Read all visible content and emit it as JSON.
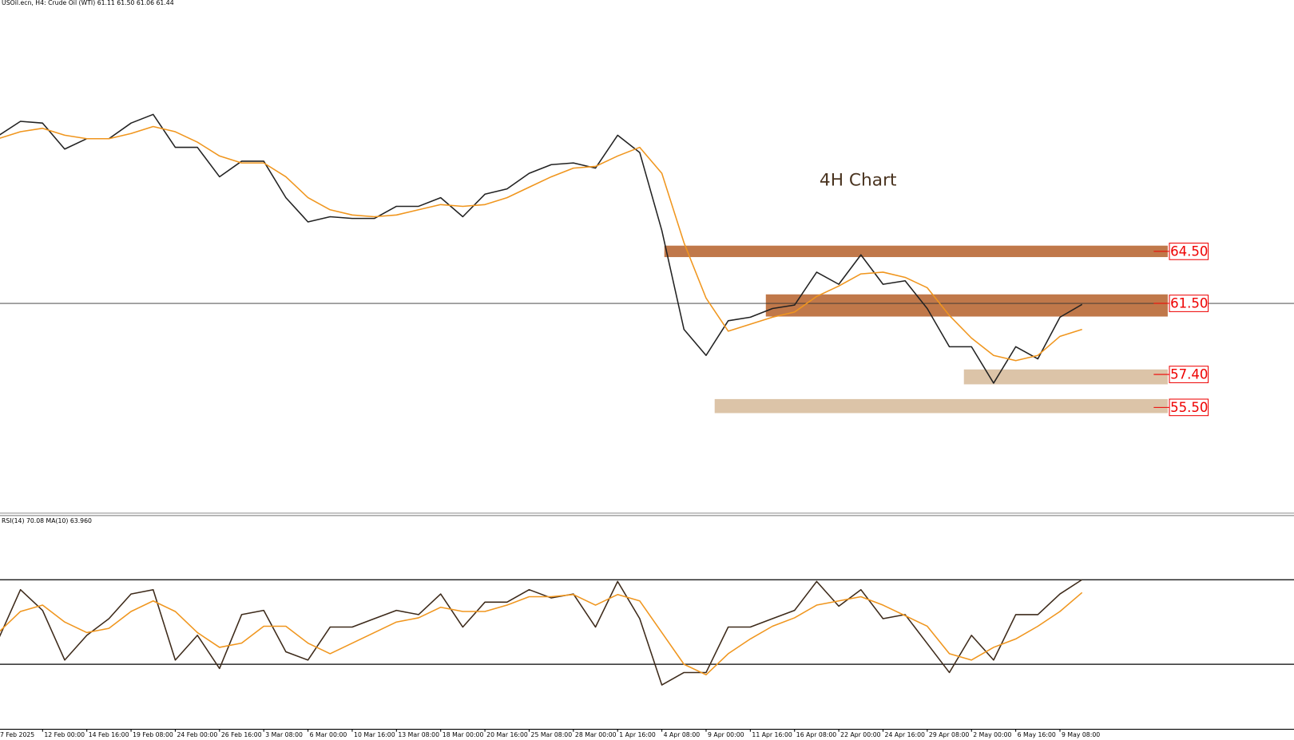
{
  "chart_data": [
    {
      "type": "line",
      "title": "USOil.ecn, H4:  Crude Oil (WTI)  61.11 61.50 61.06 61.44",
      "annotation": "4H Chart",
      "categories": [
        "7 Feb 2025",
        null,
        "12 Feb 00:00",
        null,
        "14 Feb 16:00",
        null,
        "19 Feb 08:00",
        null,
        "24 Feb 00:00",
        null,
        "26 Feb 16:00",
        null,
        "3 Mar 08:00",
        null,
        "6 Mar 00:00",
        null,
        "10 Mar 16:00",
        null,
        "13 Mar 08:00",
        null,
        "18 Mar 00:00",
        null,
        "20 Mar 16:00",
        null,
        "25 Mar 08:00",
        null,
        "28 Mar 00:00",
        null,
        "1 Apr 16:00",
        null,
        "4 Apr 08:00",
        null,
        "9 Apr 00:00",
        null,
        "11 Apr 16:00",
        null,
        "16 Apr 08:00",
        null,
        "22 Apr 00:00",
        null,
        "24 Apr 16:00",
        null,
        "29 Apr 08:00",
        null,
        "2 May 00:00",
        null,
        "6 May 16:00",
        null,
        "9 May 08:00",
        null
      ],
      "series": [
        {
          "color": "#222222",
          "values": [
            71.17,
            72.0,
            71.9,
            70.4,
            71.0,
            71.0,
            71.9,
            72.4,
            70.5,
            70.5,
            68.8,
            69.7,
            69.7,
            67.6,
            66.2,
            66.5,
            66.4,
            66.4,
            67.1,
            67.1,
            67.6,
            66.5,
            67.8,
            68.1,
            69.0,
            69.5,
            69.6,
            69.3,
            71.2,
            70.2,
            65.7,
            60.0,
            58.5,
            60.5,
            60.7,
            61.2,
            61.4,
            63.3,
            62.6,
            64.3,
            62.6,
            62.8,
            61.2,
            59.0,
            59.0,
            56.9,
            59.0,
            58.3,
            60.7,
            61.44
          ]
        },
        {
          "color": "#f0961e",
          "values": [
            71.0,
            71.4,
            71.6,
            71.2,
            71.0,
            71.0,
            71.3,
            71.7,
            71.4,
            70.8,
            70.0,
            69.6,
            69.6,
            68.8,
            67.6,
            66.9,
            66.6,
            66.5,
            66.6,
            66.9,
            67.2,
            67.1,
            67.2,
            67.6,
            68.2,
            68.8,
            69.3,
            69.4,
            70.0,
            70.5,
            69.0,
            65.0,
            61.8,
            59.9,
            60.3,
            60.7,
            61.0,
            61.9,
            62.5,
            63.2,
            63.3,
            63.0,
            62.4,
            60.8,
            59.5,
            58.5,
            58.2,
            58.5,
            59.6,
            60.0
          ]
        }
      ],
      "zones": [
        {
          "value": 64.5,
          "label": "64.50",
          "low": 64.17,
          "high": 64.83,
          "color": "#c0784a"
        },
        {
          "value": 61.5,
          "label": "61.50",
          "low": 60.74,
          "high": 62.02,
          "color": "#c0784a"
        },
        {
          "value": 57.4,
          "label": "57.40",
          "low": 56.83,
          "high": 57.69,
          "color": "#dcc4a8"
        },
        {
          "value": 55.5,
          "label": "55.50",
          "low": 55.17,
          "high": 55.98,
          "color": "#dcc4a8"
        }
      ],
      "price_line": 61.5,
      "ylim": [
        49.4,
        79.0
      ]
    },
    {
      "type": "line",
      "title": "RSI(14) 70.08 MA(10) 63.960",
      "series": [
        {
          "color": "#3d2a1a",
          "values": [
            41.8,
            65.3,
            55.5,
            32,
            43.7,
            51.6,
            63.3,
            65.3,
            32,
            43.7,
            28,
            53.5,
            55.5,
            35.9,
            32,
            47.6,
            47.6,
            51.6,
            55.5,
            53.5,
            63.3,
            47.6,
            59.4,
            59.4,
            65.3,
            61.4,
            63.3,
            47.6,
            69.2,
            51.6,
            20.2,
            26.1,
            26.1,
            47.6,
            47.6,
            51.6,
            55.5,
            69.2,
            57.5,
            65.3,
            51.6,
            53.5,
            39.8,
            26.1,
            43.7,
            32,
            53.5,
            53.5,
            63.3,
            70.08
          ]
        },
        {
          "color": "#f0961e",
          "values": [
            45,
            55,
            58,
            50,
            45,
            47,
            55,
            60,
            55,
            45,
            38,
            40,
            48,
            48,
            40,
            35,
            40,
            45,
            50,
            52,
            57,
            55,
            55,
            58,
            62,
            62,
            63,
            58,
            63,
            60,
            45,
            30,
            25,
            35,
            42,
            48,
            52,
            58,
            60,
            62,
            58,
            53,
            48,
            35,
            32,
            38,
            42,
            48,
            55,
            63.96
          ]
        }
      ],
      "levels": [
        70,
        30
      ],
      "ylim": [
        0,
        100
      ]
    }
  ]
}
